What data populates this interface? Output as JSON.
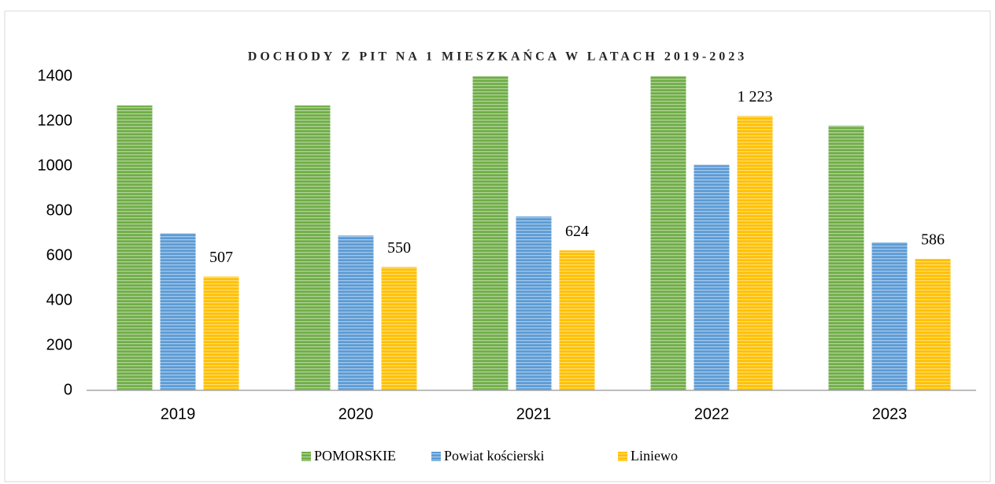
{
  "chart_data": {
    "type": "bar",
    "title": "DOCHODY Z PIT NA 1 MIESZKAŃCA W LATACH 2019-2023",
    "categories": [
      "2019",
      "2020",
      "2021",
      "2022",
      "2023"
    ],
    "series": [
      {
        "name": "POMORSKIE",
        "color": "#70ad47",
        "values": [
          1270,
          1270,
          1400,
          1400,
          1180
        ]
      },
      {
        "name": "Powiat kościerski",
        "color": "#5b9bd5",
        "values": [
          700,
          690,
          775,
          1005,
          660
        ]
      },
      {
        "name": "Liniewo",
        "color": "#ffc000",
        "values": [
          507,
          550,
          624,
          1223,
          586
        ],
        "value_labels": [
          "507",
          "550",
          "624",
          "1 223",
          "586"
        ]
      }
    ],
    "ylim": [
      0,
      1400
    ],
    "yticks": [
      0,
      200,
      400,
      600,
      800,
      1000,
      1200,
      1400
    ],
    "grid": false,
    "legend": "bottom"
  }
}
